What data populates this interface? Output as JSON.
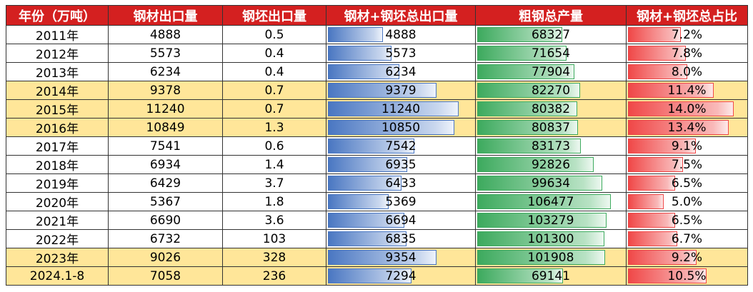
{
  "headers": [
    "年份（万吨）",
    "钢材出口量",
    "钢坯出口量",
    "钢材+钢坯总出口量",
    "粗钢总产量",
    "钢材+钢坯总占比"
  ],
  "colors": {
    "header_bg": "#d42020",
    "highlight_row": "#ffe699",
    "bar_blue": "#4a77c2",
    "bar_green": "#3daa5e",
    "bar_red": "#f04848"
  },
  "bar_max": {
    "total_export": 12500,
    "crude": 117000,
    "share": 15.6
  },
  "rows": [
    {
      "year": "2011年",
      "steel": "4888",
      "billet": "0.5",
      "total": "4888",
      "crude": "68327",
      "share": "7.2%",
      "share_num": 7.2,
      "highlight": false
    },
    {
      "year": "2012年",
      "steel": "5573",
      "billet": "0.4",
      "total": "5573",
      "crude": "71654",
      "share": "7.8%",
      "share_num": 7.8,
      "highlight": false
    },
    {
      "year": "2013年",
      "steel": "6234",
      "billet": "0.4",
      "total": "6234",
      "crude": "77904",
      "share": "8.0%",
      "share_num": 8.0,
      "highlight": false
    },
    {
      "year": "2014年",
      "steel": "9378",
      "billet": "0.7",
      "total": "9379",
      "crude": "82270",
      "share": "11.4%",
      "share_num": 11.4,
      "highlight": true
    },
    {
      "year": "2015年",
      "steel": "11240",
      "billet": "0.7",
      "total": "11240",
      "crude": "80382",
      "share": "14.0%",
      "share_num": 14.0,
      "highlight": true
    },
    {
      "year": "2016年",
      "steel": "10849",
      "billet": "1.3",
      "total": "10850",
      "crude": "80837",
      "share": "13.4%",
      "share_num": 13.4,
      "highlight": true
    },
    {
      "year": "2017年",
      "steel": "7541",
      "billet": "0.6",
      "total": "7542",
      "crude": "83173",
      "share": "9.1%",
      "share_num": 9.1,
      "highlight": false
    },
    {
      "year": "2018年",
      "steel": "6934",
      "billet": "1.4",
      "total": "6935",
      "crude": "92826",
      "share": "7.5%",
      "share_num": 7.5,
      "highlight": false
    },
    {
      "year": "2019年",
      "steel": "6429",
      "billet": "3.7",
      "total": "6433",
      "crude": "99634",
      "share": "6.5%",
      "share_num": 6.5,
      "highlight": false
    },
    {
      "year": "2020年",
      "steel": "5367",
      "billet": "1.8",
      "total": "5369",
      "crude": "106477",
      "share": "5.0%",
      "share_num": 5.0,
      "highlight": false
    },
    {
      "year": "2021年",
      "steel": "6690",
      "billet": "3.6",
      "total": "6694",
      "crude": "103279",
      "share": "6.5%",
      "share_num": 6.5,
      "highlight": false
    },
    {
      "year": "2022年",
      "steel": "6732",
      "billet": "103",
      "total": "6835",
      "crude": "101300",
      "share": "6.7%",
      "share_num": 6.7,
      "highlight": false
    },
    {
      "year": "2023年",
      "steel": "9026",
      "billet": "328",
      "total": "9354",
      "crude": "101908",
      "share": "9.2%",
      "share_num": 9.2,
      "highlight": true
    },
    {
      "year": "2024.1-8",
      "steel": "7058",
      "billet": "236",
      "total": "7294",
      "crude": "69141",
      "share": "10.5%",
      "share_num": 10.5,
      "highlight": true
    }
  ]
}
